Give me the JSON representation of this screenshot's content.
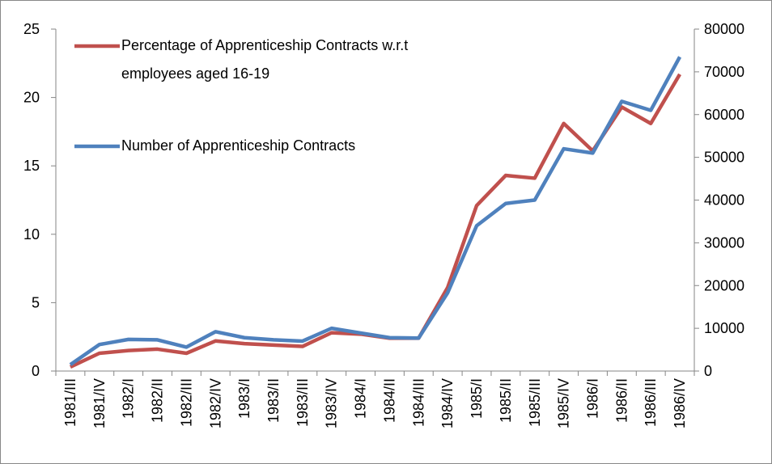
{
  "chart_data": {
    "type": "line",
    "categories": [
      "1981/III",
      "1981/IV",
      "1982/I",
      "1982/II",
      "1982/III",
      "1982/IV",
      "1983/I",
      "1983/II",
      "1983/III",
      "1983/IV",
      "1984/I",
      "1984/II",
      "1984/III",
      "1984/IV",
      "1985/I",
      "1985/II",
      "1985/III",
      "1985/IV",
      "1986/I",
      "1986/II",
      "1986/III",
      "1986/IV"
    ],
    "series": [
      {
        "name": "Percentage of Apprenticeship Contracts w.r.t employees aged 16-19",
        "color": "#c0504d",
        "axis": "y",
        "values": [
          0.3,
          1.3,
          1.5,
          1.6,
          1.3,
          2.2,
          2.0,
          1.9,
          1.8,
          2.8,
          2.7,
          2.4,
          2.4,
          6.1,
          12.1,
          14.3,
          14.1,
          18.1,
          16.1,
          19.3,
          18.1,
          21.7
        ]
      },
      {
        "name": "Number of Apprenticeship Contracts",
        "color": "#4f81bd",
        "axis": "y2",
        "values": [
          1500,
          6200,
          7400,
          7300,
          5600,
          9200,
          7800,
          7300,
          7000,
          10000,
          8900,
          7800,
          7700,
          18300,
          34000,
          39200,
          40000,
          52000,
          51000,
          63100,
          61000,
          73500
        ]
      }
    ],
    "ylim": [
      0,
      25
    ],
    "yticks": [
      0,
      5,
      10,
      15,
      20,
      25
    ],
    "y2lim": [
      0,
      80000
    ],
    "y2ticks": [
      0,
      10000,
      20000,
      30000,
      40000,
      50000,
      60000,
      70000,
      80000
    ],
    "grid": false,
    "legend": "upper-left"
  }
}
